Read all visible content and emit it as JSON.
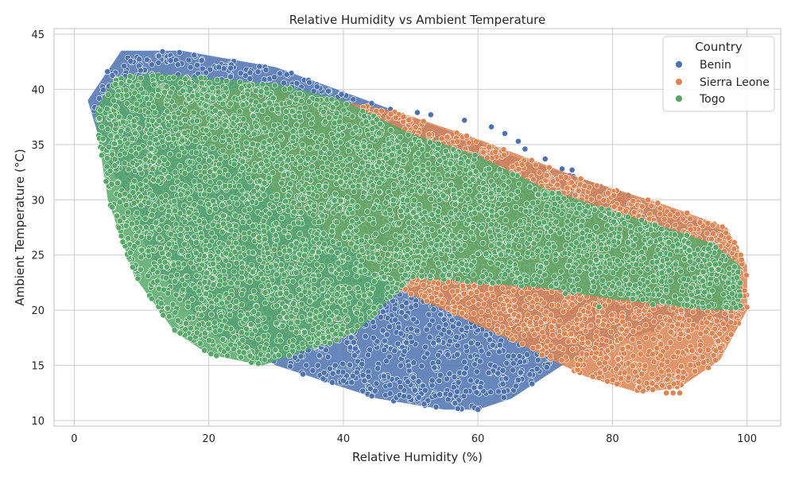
{
  "chart_data": {
    "type": "scatter",
    "title": "Relative Humidity vs Ambient Temperature",
    "xlabel": "Relative Humidity (%)",
    "ylabel": "Ambient Temperature (°C)",
    "xlim": [
      -3,
      105
    ],
    "ylim": [
      9.5,
      45.5
    ],
    "xticks": [
      0,
      20,
      40,
      60,
      80,
      100
    ],
    "yticks": [
      10,
      15,
      20,
      25,
      30,
      35,
      40,
      45
    ],
    "grid": true,
    "legend": {
      "title": "Country",
      "placement": "top-right",
      "entries": [
        "Benin",
        "Sierra Leone",
        "Togo"
      ]
    },
    "series": [
      {
        "name": "Benin",
        "color": "#4c72b0",
        "region_polygon": [
          [
            2,
            39
          ],
          [
            7,
            43.5
          ],
          [
            16,
            43.5
          ],
          [
            30,
            42
          ],
          [
            48,
            38
          ],
          [
            65,
            34
          ],
          [
            80,
            31
          ],
          [
            97,
            27
          ],
          [
            98,
            18.5
          ],
          [
            90,
            19
          ],
          [
            75,
            16
          ],
          [
            65,
            12
          ],
          [
            60,
            11
          ],
          [
            55,
            11
          ],
          [
            45,
            12
          ],
          [
            35,
            14
          ],
          [
            30,
            15
          ],
          [
            20,
            18
          ],
          [
            12,
            24
          ],
          [
            4,
            35
          ]
        ],
        "outliers": [
          [
            47,
            38.2
          ],
          [
            51,
            37.9
          ],
          [
            53,
            37.7
          ],
          [
            58,
            37.2
          ],
          [
            62,
            36.6
          ],
          [
            64,
            36
          ],
          [
            66,
            35.3
          ],
          [
            67,
            34.6
          ],
          [
            70,
            33.7
          ],
          [
            72.5,
            32.8
          ],
          [
            74,
            32.7
          ],
          [
            34,
            14.2
          ],
          [
            37,
            13.8
          ],
          [
            40,
            13.6
          ],
          [
            44,
            12.9
          ],
          [
            49,
            12.2
          ],
          [
            52,
            11.5
          ],
          [
            57,
            11.1
          ],
          [
            60,
            11
          ]
        ]
      },
      {
        "name": "Sierra Leone",
        "color": "#dd8452",
        "region_polygon": [
          [
            12,
            39.5
          ],
          [
            30,
            40
          ],
          [
            48,
            38
          ],
          [
            60,
            35.5
          ],
          [
            75,
            32
          ],
          [
            88,
            29.5
          ],
          [
            97,
            27.5
          ],
          [
            100,
            24
          ],
          [
            100,
            20
          ],
          [
            96,
            15.5
          ],
          [
            90,
            13
          ],
          [
            84,
            12.5
          ],
          [
            76,
            14
          ],
          [
            66,
            17
          ],
          [
            55,
            20
          ],
          [
            48,
            22
          ],
          [
            40,
            26
          ],
          [
            25,
            33
          ],
          [
            15,
            37
          ]
        ],
        "outliers": [
          [
            88,
            12.5
          ],
          [
            89,
            12.5
          ],
          [
            90,
            12.5
          ],
          [
            86,
            12.8
          ],
          [
            84,
            13
          ]
        ]
      },
      {
        "name": "Togo",
        "color": "#55a868",
        "region_polygon": [
          [
            3,
            38
          ],
          [
            6,
            41
          ],
          [
            12,
            41.5
          ],
          [
            20,
            41
          ],
          [
            30,
            40.5
          ],
          [
            40,
            39
          ],
          [
            50,
            36
          ],
          [
            60,
            34
          ],
          [
            70,
            31
          ],
          [
            80,
            29
          ],
          [
            88,
            27.5
          ],
          [
            95,
            26
          ],
          [
            99,
            24
          ],
          [
            99,
            20
          ],
          [
            95,
            20
          ],
          [
            88,
            20.5
          ],
          [
            80,
            21
          ],
          [
            70,
            22
          ],
          [
            60,
            22.5
          ],
          [
            50,
            23
          ],
          [
            42,
            18
          ],
          [
            35,
            16.5
          ],
          [
            28,
            15
          ],
          [
            20,
            16
          ],
          [
            15,
            18
          ],
          [
            9,
            23
          ],
          [
            5,
            30
          ],
          [
            4,
            34
          ]
        ],
        "outliers": [
          [
            15,
            32.5
          ],
          [
            22,
            29.5
          ],
          [
            26,
            28
          ],
          [
            37,
            17.5
          ],
          [
            38,
            17
          ],
          [
            39,
            17.3
          ],
          [
            73,
            21.5
          ],
          [
            78,
            20.3
          ],
          [
            83,
            21
          ],
          [
            86,
            20.5
          ]
        ]
      }
    ]
  }
}
